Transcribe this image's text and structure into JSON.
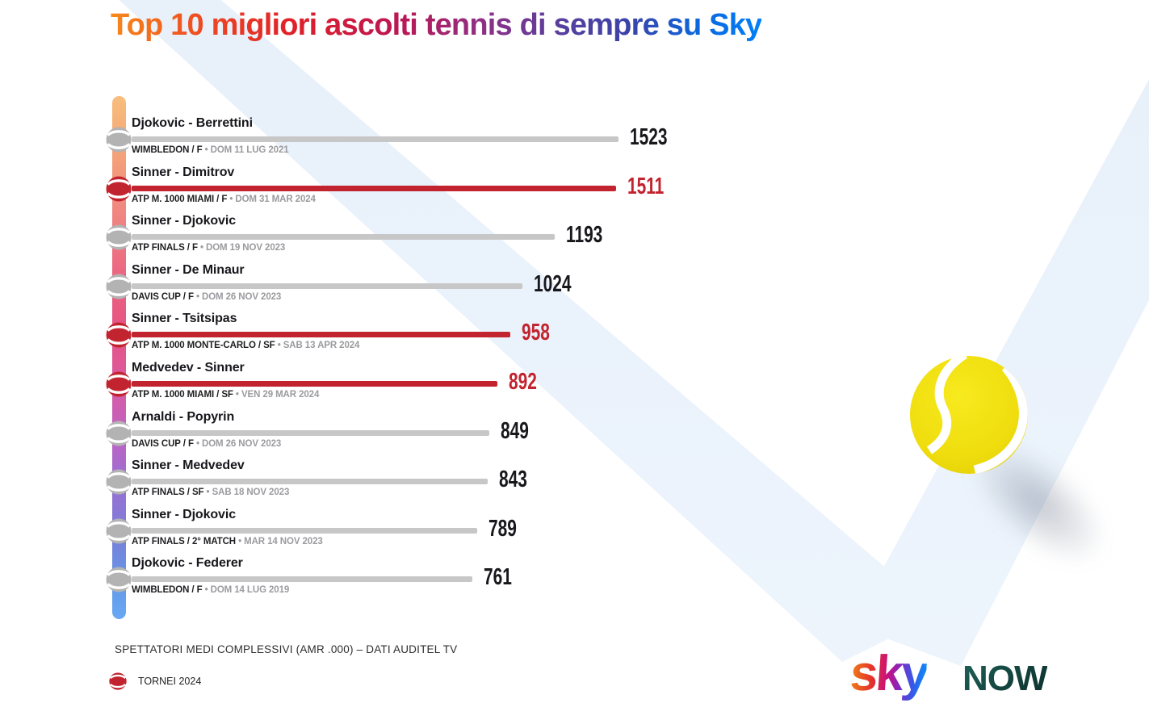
{
  "title": "Top 10 migliori ascolti tennis di sempre su Sky",
  "chart_data": {
    "type": "bar",
    "orientation": "horizontal",
    "title": "Top 10 migliori ascolti tennis di sempre su Sky",
    "value_note": "SPETTATORI MEDI COMPLESSIVI (AMR .000) – DATI AUDITEL TV",
    "categories": [
      "Djokovic - Berrettini",
      "Sinner - Dimitrov",
      "Sinner - Djokovic",
      "Sinner - De Minaur",
      "Sinner - Tsitsipas",
      "Medvedev - Sinner",
      "Arnaldi - Popyrin",
      "Sinner - Medvedev",
      "Sinner - Djokovic",
      "Djokovic - Federer"
    ],
    "values": [
      1523,
      1511,
      1193,
      1024,
      958,
      892,
      849,
      843,
      789,
      761
    ],
    "rows": [
      {
        "match": "Djokovic - Berrettini",
        "event": "WIMBLEDON / F",
        "date": "DOM 11 LUG 2021",
        "value": 1523,
        "tornei_2024": false
      },
      {
        "match": "Sinner - Dimitrov",
        "event": "ATP M. 1000 MIAMI / F",
        "date": "DOM 31 MAR 2024",
        "value": 1511,
        "tornei_2024": true
      },
      {
        "match": "Sinner - Djokovic",
        "event": "ATP FINALS / F",
        "date": "DOM 19 NOV 2023",
        "value": 1193,
        "tornei_2024": false
      },
      {
        "match": "Sinner - De Minaur",
        "event": "DAVIS CUP / F",
        "date": "DOM 26 NOV 2023",
        "value": 1024,
        "tornei_2024": false
      },
      {
        "match": "Sinner - Tsitsipas",
        "event": "ATP M. 1000 MONTE-CARLO / SF",
        "date": "SAB 13 APR 2024",
        "value": 958,
        "tornei_2024": true
      },
      {
        "match": "Medvedev - Sinner",
        "event": "ATP M. 1000 MIAMI / SF",
        "date": "VEN 29 MAR 2024",
        "value": 892,
        "tornei_2024": true
      },
      {
        "match": "Arnaldi - Popyrin",
        "event": "DAVIS CUP / F",
        "date": "DOM 26 NOV 2023",
        "value": 849,
        "tornei_2024": false
      },
      {
        "match": "Sinner - Medvedev",
        "event": "ATP FINALS / SF",
        "date": "SAB 18 NOV 2023",
        "value": 843,
        "tornei_2024": false
      },
      {
        "match": "Sinner - Djokovic",
        "event": "ATP FINALS / 2° MATCH",
        "date": "MAR 14 NOV 2023",
        "value": 789,
        "tornei_2024": false
      },
      {
        "match": "Djokovic - Federer",
        "event": "WIMBLEDON / F",
        "date": "DOM 14 LUG 2019",
        "value": 761,
        "tornei_2024": false
      }
    ],
    "legend": [
      {
        "label": "TORNEI 2024",
        "color": "#C2242F"
      }
    ],
    "grid": false,
    "legend_position": "bottom-left"
  },
  "footer": {
    "note": "SPETTATORI MEDI COMPLESSIVI (AMR .000) – DATI AUDITEL TV",
    "legend_label": "TORNEI 2024",
    "sky_logo_text": "sky",
    "now_logo_text": "NOW"
  },
  "icons": {
    "row_marker": "tennis-ball-icon",
    "legend_marker": "tennis-ball-icon",
    "decoration": "big-tennis-ball"
  },
  "colors": {
    "red": "#C2242F",
    "gray_bar": "#C7C7C7",
    "gray_ball": "#B3B3B3",
    "value_black": "#17171C",
    "date_gray": "#9B9B9F",
    "band_blue": "#E9F1FA",
    "ball_yellow": "#EFDD0E"
  }
}
